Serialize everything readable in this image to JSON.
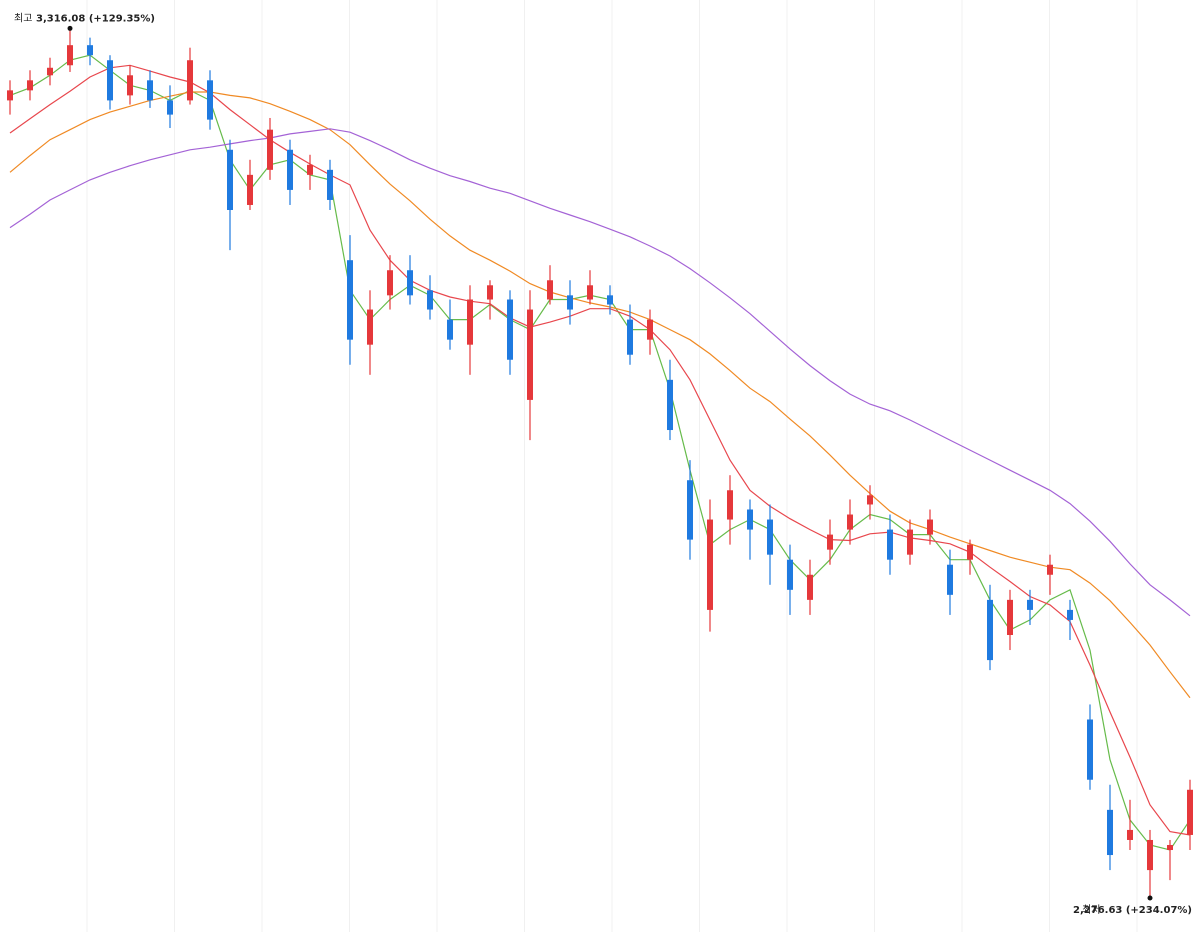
{
  "chart_data": {
    "type": "candlestick",
    "ylim": [
      2236,
      3350
    ],
    "grid": true,
    "up_color": "#e5383b",
    "down_color": "#1f7ae0",
    "open": [
      3230,
      3242,
      3260,
      3272,
      3296,
      3278,
      3236,
      3254,
      3230,
      3230,
      3254,
      3171,
      3105,
      3147,
      3171,
      3141,
      3147,
      3039,
      2938,
      2997,
      3027,
      3003,
      2968,
      2938,
      2992,
      2992,
      2872,
      2992,
      2997,
      2992,
      2997,
      2968,
      2944,
      2896,
      2776,
      2621,
      2729,
      2741,
      2729,
      2681,
      2633,
      2693,
      2717,
      2747,
      2717,
      2687,
      2711,
      2675,
      2681,
      2633,
      2591,
      2633,
      2663,
      2621,
      2490,
      2382,
      2346,
      2310,
      2334,
      2352
    ],
    "high": [
      3254,
      3266,
      3281,
      3316.08,
      3305,
      3284,
      3272,
      3266,
      3248,
      3293,
      3266,
      3183,
      3159,
      3209,
      3183,
      3165,
      3159,
      3069,
      3003,
      3045,
      3045,
      3021,
      2992,
      3009,
      3015,
      3003,
      3003,
      3033,
      3015,
      3027,
      3009,
      2986,
      2980,
      2920,
      2800,
      2753,
      2782,
      2753,
      2747,
      2699,
      2681,
      2729,
      2753,
      2770,
      2735,
      2729,
      2741,
      2693,
      2705,
      2651,
      2645,
      2645,
      2687,
      2633,
      2508,
      2412,
      2394,
      2358,
      2346,
      2418
    ],
    "low": [
      3213,
      3230,
      3248,
      3264,
      3272,
      3219,
      3225,
      3221,
      3197,
      3225,
      3195,
      3051,
      3099,
      3135,
      3105,
      3123,
      3099,
      2914,
      2902,
      2980,
      2986,
      2968,
      2932,
      2902,
      2968,
      2902,
      2824,
      2986,
      2962,
      2986,
      2974,
      2914,
      2926,
      2824,
      2681,
      2595,
      2699,
      2681,
      2651,
      2615,
      2615,
      2675,
      2699,
      2729,
      2663,
      2675,
      2699,
      2615,
      2663,
      2549,
      2573,
      2603,
      2639,
      2585,
      2406,
      2310,
      2334,
      2276.63,
      2298,
      2334
    ],
    "close": [
      3242,
      3254,
      3269,
      3296,
      3284,
      3230,
      3260,
      3230,
      3213,
      3278,
      3207,
      3099,
      3141,
      3195,
      3123,
      3153,
      3111,
      2944,
      2980,
      3027,
      2997,
      2980,
      2944,
      2992,
      3009,
      2920,
      2980,
      3015,
      2980,
      3009,
      2986,
      2926,
      2968,
      2836,
      2705,
      2729,
      2764,
      2717,
      2687,
      2645,
      2663,
      2711,
      2735,
      2758,
      2681,
      2717,
      2729,
      2639,
      2699,
      2561,
      2633,
      2621,
      2675,
      2609,
      2418,
      2328,
      2358,
      2346,
      2340,
      2406
    ],
    "lines": [
      {
        "color": "#66bb4a",
        "values": [
          3236,
          3245,
          3260,
          3278,
          3284,
          3266,
          3248,
          3242,
          3230,
          3242,
          3230,
          3159,
          3123,
          3153,
          3159,
          3141,
          3135,
          3003,
          2968,
          2992,
          3009,
          2997,
          2968,
          2968,
          2986,
          2968,
          2956,
          2992,
          2992,
          2997,
          2992,
          2956,
          2956,
          2884,
          2788,
          2699,
          2717,
          2729,
          2717,
          2681,
          2657,
          2681,
          2717,
          2735,
          2729,
          2711,
          2711,
          2681,
          2681,
          2633,
          2597,
          2609,
          2633,
          2645,
          2573,
          2442,
          2370,
          2340,
          2334,
          2370
        ]
      },
      {
        "color": "#e8474d",
        "values": [
          3191,
          3208,
          3225,
          3241,
          3258,
          3269,
          3272,
          3265,
          3258,
          3252,
          3239,
          3219,
          3201,
          3183,
          3168,
          3154,
          3141,
          3129,
          3075,
          3039,
          3015,
          3003,
          2995,
          2990,
          2987,
          2970,
          2959,
          2965,
          2972,
          2981,
          2981,
          2972,
          2956,
          2932,
          2896,
          2848,
          2800,
          2764,
          2745,
          2730,
          2717,
          2705,
          2704,
          2712,
          2714,
          2707,
          2704,
          2700,
          2690,
          2672,
          2655,
          2637,
          2627,
          2607,
          2555,
          2499,
          2445,
          2388,
          2356,
          2352
        ]
      },
      {
        "color": "#f08a24",
        "values": [
          3144,
          3164,
          3183,
          3195,
          3207,
          3216,
          3223,
          3230,
          3235,
          3240,
          3240,
          3236,
          3233,
          3226,
          3217,
          3207,
          3195,
          3177,
          3153,
          3130,
          3110,
          3088,
          3068,
          3051,
          3039,
          3026,
          3011,
          3001,
          2994,
          2988,
          2983,
          2977,
          2968,
          2956,
          2944,
          2927,
          2907,
          2886,
          2870,
          2849,
          2829,
          2806,
          2782,
          2760,
          2739,
          2725,
          2717,
          2708,
          2700,
          2692,
          2684,
          2678,
          2672,
          2669,
          2653,
          2632,
          2606,
          2579,
          2547,
          2516
        ]
      },
      {
        "color": "#a463d6",
        "values": [
          3078,
          3094,
          3111,
          3123,
          3135,
          3144,
          3152,
          3159,
          3165,
          3171,
          3174,
          3178,
          3182,
          3185,
          3190,
          3193,
          3196,
          3192,
          3182,
          3171,
          3159,
          3149,
          3140,
          3133,
          3125,
          3119,
          3110,
          3101,
          3093,
          3085,
          3076,
          3067,
          3056,
          3044,
          3029,
          3012,
          2994,
          2975,
          2954,
          2933,
          2913,
          2895,
          2879,
          2867,
          2859,
          2848,
          2836,
          2824,
          2812,
          2800,
          2788,
          2776,
          2764,
          2748,
          2727,
          2703,
          2676,
          2651,
          2633,
          2614
        ]
      }
    ],
    "max_label": {
      "prefix": "최고",
      "text": "3,316.08 (+129.35%)"
    },
    "min_label": {
      "prefix": "최저",
      "text": "2,276.63 (+234.07%)"
    }
  }
}
